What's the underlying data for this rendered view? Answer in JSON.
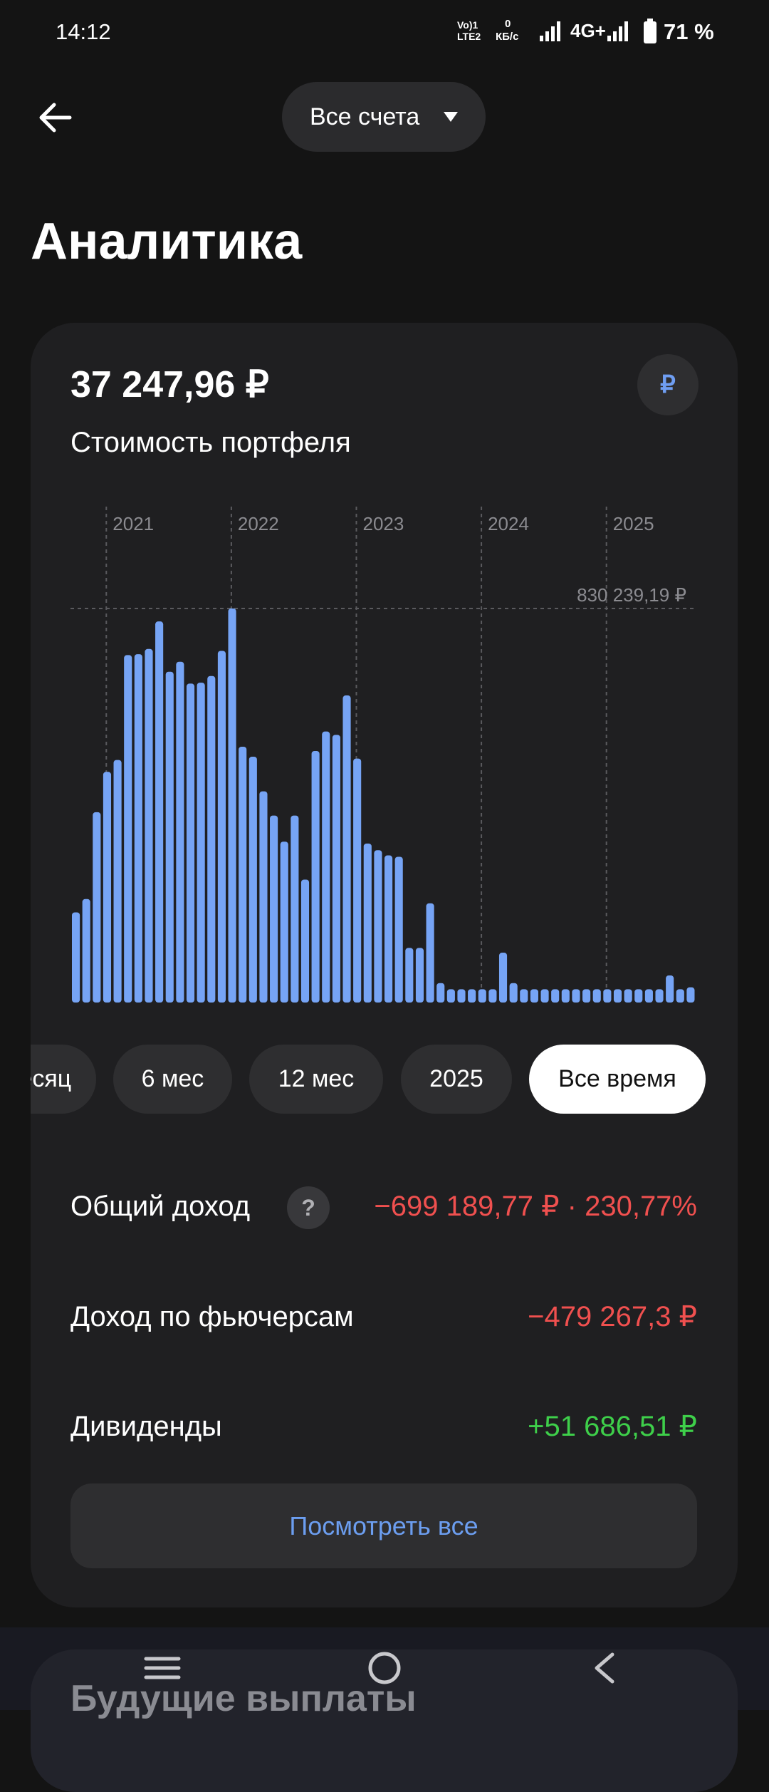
{
  "status_bar": {
    "time": "14:12",
    "volte": "Vo)1",
    "lte": "LTE2",
    "data_speed": "0",
    "data_unit": "КБ/с",
    "network": "4G+",
    "battery": "71 %"
  },
  "header": {
    "account_selector": "Все счета",
    "title": "Аналитика"
  },
  "portfolio": {
    "value": "37 247,96 ₽",
    "caption": "Стоимость портфеля",
    "currency_button": "₽"
  },
  "chart_data": {
    "type": "bar",
    "color": "#76a4f5",
    "categories": [
      null,
      null,
      null,
      "2021",
      null,
      null,
      null,
      null,
      null,
      null,
      null,
      null,
      null,
      null,
      null,
      "2022",
      null,
      null,
      null,
      null,
      null,
      null,
      null,
      null,
      null,
      null,
      null,
      "2023",
      null,
      null,
      null,
      null,
      null,
      null,
      null,
      null,
      null,
      null,
      null,
      "2024",
      null,
      null,
      null,
      null,
      null,
      null,
      null,
      null,
      null,
      null,
      null,
      "2025",
      null,
      null,
      null,
      null,
      null,
      null,
      null,
      null
    ],
    "values": [
      190000,
      218000,
      401000,
      486000,
      511000,
      732000,
      734000,
      745000,
      803000,
      697000,
      718000,
      672000,
      674000,
      688000,
      741000,
      830239.19,
      539000,
      518000,
      445000,
      394000,
      339000,
      394000,
      259000,
      530000,
      571000,
      564000,
      647000,
      514000,
      335000,
      321000,
      310000,
      307000,
      115000,
      115000,
      209000,
      41000,
      28000,
      28000,
      28000,
      28000,
      28000,
      105000,
      41000,
      28000,
      28000,
      28000,
      28000,
      28000,
      28000,
      28000,
      28000,
      28000,
      28000,
      28000,
      28000,
      28000,
      28000,
      57000,
      28000,
      32000
    ],
    "ylim": [
      0,
      830239.19
    ],
    "max_line": {
      "value": 830239.19,
      "label": "830 239,19 ₽"
    }
  },
  "periods": [
    "Месяц",
    "6 мес",
    "12 мес",
    "2025",
    "Все время"
  ],
  "selected_period": 4,
  "stats": [
    {
      "label": "Общий доход",
      "help": "?",
      "value": "−699 189,77 ₽ · 230,77%",
      "tone": "negative"
    },
    {
      "label": "Доход по фьючерсам",
      "value": "−479 267,3 ₽",
      "tone": "negative"
    },
    {
      "label": "Дивиденды",
      "value": "+51 686,51 ₽",
      "tone": "positive"
    }
  ],
  "show_all_button": "Посмотреть все",
  "next_card": {
    "title": "Будущие выплаты"
  }
}
